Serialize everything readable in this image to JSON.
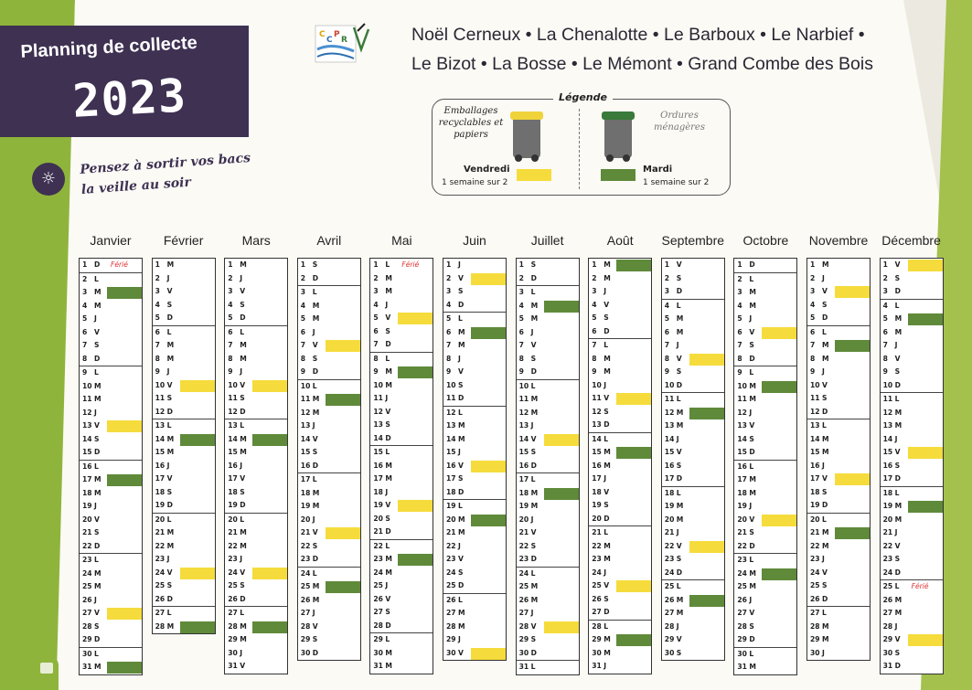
{
  "header": {
    "title_line1": "Planning de collecte",
    "title_year": "2023",
    "reminder": "Pensez à sortir vos bacs la veille au soir",
    "villages_line1": "Noël Cerneux • La Chenalotte • Le Barboux • Le Narbief •",
    "villages_line2": "Le Bizot • La Bosse • Le Mémont • Grand Combe des Bois"
  },
  "logo": {
    "name": "ccplr-logo"
  },
  "legend": {
    "title": "Légende",
    "recycling_label": "Emballages recyclables et papiers",
    "household_label": "Ordures ménagères",
    "recycling_day": "Vendredi",
    "recycling_freq": "1 semaine sur 2",
    "household_day": "Mardi",
    "household_freq": "1 semaine sur 2",
    "colors": {
      "recycling": "#f5dc3c",
      "household": "#5f8a3a"
    }
  },
  "holiday_label": "Férié",
  "months": [
    {
      "name": "Janvier",
      "first_dow": 6,
      "days": 31,
      "yellow": [
        13,
        27
      ],
      "green": [
        3,
        17,
        31
      ],
      "holidays": [
        1
      ]
    },
    {
      "name": "Février",
      "first_dow": 2,
      "days": 28,
      "yellow": [
        10,
        24
      ],
      "green": [
        14,
        28
      ],
      "holidays": []
    },
    {
      "name": "Mars",
      "first_dow": 2,
      "days": 31,
      "yellow": [
        10,
        24
      ],
      "green": [
        14,
        28
      ],
      "holidays": []
    },
    {
      "name": "Avril",
      "first_dow": 5,
      "days": 30,
      "yellow": [
        7,
        21
      ],
      "green": [
        11,
        25
      ],
      "holidays": []
    },
    {
      "name": "Mai",
      "first_dow": 0,
      "days": 31,
      "yellow": [
        5,
        19
      ],
      "green": [
        9,
        23
      ],
      "holidays": [
        1
      ]
    },
    {
      "name": "Juin",
      "first_dow": 3,
      "days": 30,
      "yellow": [
        2,
        16,
        30
      ],
      "green": [
        6,
        20
      ],
      "holidays": []
    },
    {
      "name": "Juillet",
      "first_dow": 5,
      "days": 31,
      "yellow": [
        14,
        28
      ],
      "green": [
        4,
        18
      ],
      "holidays": []
    },
    {
      "name": "Août",
      "first_dow": 1,
      "days": 31,
      "yellow": [
        11,
        25
      ],
      "green": [
        1,
        15,
        29
      ],
      "holidays": []
    },
    {
      "name": "Septembre",
      "first_dow": 4,
      "days": 30,
      "yellow": [
        8,
        22
      ],
      "green": [
        12,
        26
      ],
      "holidays": []
    },
    {
      "name": "Octobre",
      "first_dow": 6,
      "days": 31,
      "yellow": [
        6,
        20
      ],
      "green": [
        10,
        24
      ],
      "holidays": []
    },
    {
      "name": "Novembre",
      "first_dow": 2,
      "days": 30,
      "yellow": [
        3,
        17
      ],
      "green": [
        7,
        21
      ],
      "holidays": []
    },
    {
      "name": "Décembre",
      "first_dow": 4,
      "days": 31,
      "yellow": [
        1,
        15,
        29
      ],
      "green": [
        5,
        19
      ],
      "holidays": [
        25
      ]
    }
  ],
  "weekday_letters": [
    "L",
    "M",
    "M",
    "J",
    "V",
    "S",
    "D"
  ]
}
